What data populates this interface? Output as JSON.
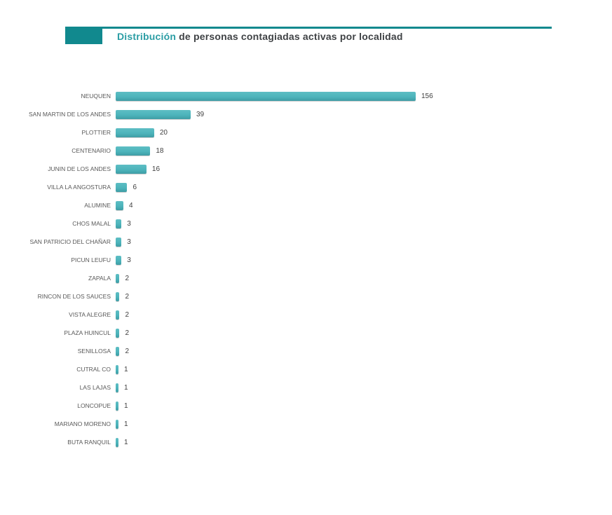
{
  "header": {
    "title_highlight": "Distribución",
    "title_rest": " de personas contagiadas activas por localidad",
    "accent_color": "#11898e",
    "highlight_color": "#2b9da4",
    "title_text_color": "#3f4245"
  },
  "chart_data": {
    "type": "bar",
    "orientation": "horizontal",
    "title": "Distribución de personas contagiadas activas por localidad",
    "categories": [
      "NEUQUEN",
      "SAN MARTIN DE LOS ANDES",
      "PLOTTIER",
      "CENTENARIO",
      "JUNIN DE LOS ANDES",
      "VILLA LA ANGOSTURA",
      "ALUMINE",
      "CHOS MALAL",
      "SAN PATRICIO DEL CHAÑAR",
      "PICUN LEUFU",
      "ZAPALA",
      "RINCON DE LOS SAUCES",
      "VISTA ALEGRE",
      "PLAZA HUINCUL",
      "SENILLOSA",
      "CUTRAL CO",
      "LAS LAJAS",
      "LONCOPUE",
      "MARIANO MORENO",
      "BUTA RANQUIL"
    ],
    "values": [
      156,
      39,
      20,
      18,
      16,
      6,
      4,
      3,
      3,
      3,
      2,
      2,
      2,
      2,
      2,
      1,
      1,
      1,
      1,
      1
    ],
    "xlabel": "",
    "ylabel": "",
    "xlim": [
      0,
      156
    ],
    "grid": false,
    "legend": false,
    "value_labels": "outside-end",
    "bar_color": "#4db4bb",
    "category_label_color": "#595959",
    "value_label_color": "#404040"
  }
}
